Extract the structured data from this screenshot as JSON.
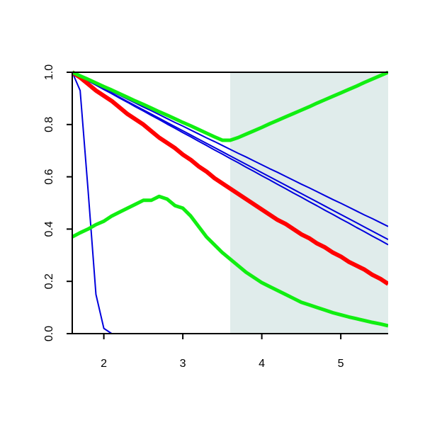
{
  "chart_data": {
    "type": "line",
    "x": [
      1.6,
      1.7,
      1.8,
      1.9,
      2.0,
      2.1,
      2.2,
      2.3,
      2.4,
      2.5,
      2.6,
      2.7,
      2.8,
      2.9,
      3.0,
      3.1,
      3.2,
      3.3,
      3.4,
      3.5,
      3.6,
      3.7,
      3.8,
      3.9,
      4.0,
      4.1,
      4.2,
      4.3,
      4.4,
      4.5,
      4.6,
      4.7,
      4.8,
      4.9,
      5.0,
      5.1,
      5.2,
      5.3,
      5.4,
      5.5,
      5.6
    ],
    "series": [
      {
        "color": "#0000dd",
        "width": 2,
        "values": [
          1,
          0.985,
          0.971,
          0.956,
          0.941,
          0.926,
          0.912,
          0.897,
          0.882,
          0.867,
          0.853,
          0.838,
          0.823,
          0.808,
          0.794,
          0.779,
          0.764,
          0.749,
          0.735,
          0.72,
          0.705,
          0.69,
          0.676,
          0.661,
          0.646,
          0.631,
          0.617,
          0.602,
          0.587,
          0.572,
          0.558,
          0.543,
          0.528,
          0.513,
          0.499,
          0.484,
          0.469,
          0.454,
          0.44,
          0.425,
          0.41
        ]
      },
      {
        "color": "#0000dd",
        "width": 2,
        "values": [
          1,
          0.984,
          0.968,
          0.952,
          0.936,
          0.92,
          0.904,
          0.888,
          0.872,
          0.856,
          0.84,
          0.824,
          0.808,
          0.792,
          0.776,
          0.76,
          0.744,
          0.728,
          0.712,
          0.696,
          0.68,
          0.664,
          0.648,
          0.632,
          0.616,
          0.6,
          0.584,
          0.568,
          0.552,
          0.536,
          0.52,
          0.504,
          0.488,
          0.472,
          0.456,
          0.44,
          0.424,
          0.408,
          0.392,
          0.376,
          0.36
        ]
      },
      {
        "color": "#0000dd",
        "width": 2,
        "values": [
          1,
          0.984,
          0.967,
          0.951,
          0.934,
          0.918,
          0.901,
          0.885,
          0.868,
          0.852,
          0.835,
          0.819,
          0.802,
          0.786,
          0.769,
          0.753,
          0.736,
          0.72,
          0.703,
          0.687,
          0.67,
          0.654,
          0.637,
          0.621,
          0.604,
          0.588,
          0.571,
          0.555,
          0.538,
          0.522,
          0.505,
          0.489,
          0.472,
          0.456,
          0.439,
          0.423,
          0.406,
          0.39,
          0.373,
          0.357,
          0.34
        ]
      },
      {
        "color": "#0000dd",
        "width": 2,
        "values": [
          1,
          0.93,
          0.55,
          0.15,
          0.02,
          0,
          0,
          0,
          0,
          0,
          0,
          0,
          0,
          0,
          0,
          0,
          0,
          0,
          0,
          0,
          0,
          0,
          0,
          0,
          0,
          0,
          0,
          0,
          0,
          0,
          0,
          0,
          0,
          0,
          0,
          0,
          0,
          0,
          0,
          0,
          0
        ]
      },
      {
        "color": "#ff0000",
        "width": 6,
        "values": [
          1,
          0.98,
          0.955,
          0.93,
          0.91,
          0.89,
          0.865,
          0.84,
          0.82,
          0.8,
          0.775,
          0.75,
          0.73,
          0.71,
          0.685,
          0.665,
          0.64,
          0.62,
          0.595,
          0.575,
          0.555,
          0.535,
          0.515,
          0.495,
          0.475,
          0.455,
          0.435,
          0.42,
          0.4,
          0.38,
          0.365,
          0.345,
          0.33,
          0.31,
          0.295,
          0.275,
          0.26,
          0.245,
          0.225,
          0.21,
          0.19
        ]
      },
      {
        "color": "#11ee11",
        "width": 5,
        "values": [
          1,
          0.986,
          0.973,
          0.959,
          0.945,
          0.932,
          0.918,
          0.904,
          0.89,
          0.877,
          0.863,
          0.849,
          0.836,
          0.822,
          0.808,
          0.795,
          0.781,
          0.767,
          0.753,
          0.74,
          0.74,
          0.75,
          0.763,
          0.776,
          0.789,
          0.803,
          0.816,
          0.829,
          0.842,
          0.855,
          0.868,
          0.882,
          0.895,
          0.908,
          0.921,
          0.934,
          0.947,
          0.961,
          0.974,
          0.987,
          1
        ]
      },
      {
        "color": "#11ee11",
        "width": 5,
        "values": [
          0.37,
          0.386,
          0.4,
          0.417,
          0.43,
          0.45,
          0.465,
          0.48,
          0.495,
          0.51,
          0.51,
          0.525,
          0.515,
          0.49,
          0.48,
          0.45,
          0.41,
          0.37,
          0.34,
          0.31,
          0.285,
          0.26,
          0.235,
          0.215,
          0.195,
          0.18,
          0.165,
          0.15,
          0.135,
          0.12,
          0.11,
          0.1,
          0.09,
          0.08,
          0.072,
          0.064,
          0.057,
          0.05,
          0.043,
          0.037,
          0.03
        ]
      }
    ],
    "shaded_region": {
      "xmin": 3.6,
      "xmax": 5.6,
      "color": "#e0eceb"
    },
    "xlim": [
      1.6,
      5.6
    ],
    "xticks": [
      2,
      3,
      4,
      5
    ],
    "ylim": [
      0,
      1
    ],
    "yticks": [
      {
        "value": 0,
        "label": "0.0"
      },
      0.2,
      0.4,
      0.6,
      0.8,
      {
        "value": 1,
        "label": "1.0"
      }
    ]
  }
}
